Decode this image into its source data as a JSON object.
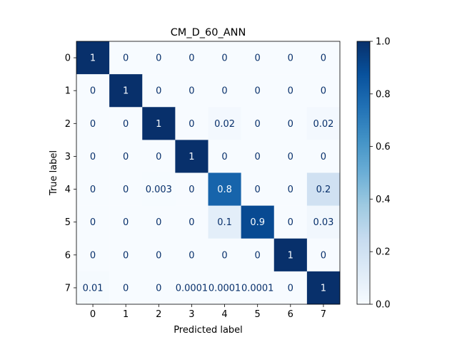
{
  "chart_data": {
    "type": "heatmap",
    "title": "CM_D_60_ANN",
    "xlabel": "Predicted label",
    "ylabel": "True label",
    "x_categories": [
      "0",
      "1",
      "2",
      "3",
      "4",
      "5",
      "6",
      "7"
    ],
    "y_categories": [
      "0",
      "1",
      "2",
      "3",
      "4",
      "5",
      "6",
      "7"
    ],
    "values": [
      [
        1,
        0,
        0,
        0,
        0,
        0,
        0,
        0
      ],
      [
        0,
        1,
        0,
        0,
        0,
        0,
        0,
        0
      ],
      [
        0,
        0,
        1,
        0,
        0.02,
        0,
        0,
        0.02
      ],
      [
        0,
        0,
        0,
        1,
        0,
        0,
        0,
        0
      ],
      [
        0,
        0,
        0.003,
        0,
        0.8,
        0,
        0,
        0.2
      ],
      [
        0,
        0,
        0,
        0,
        0.1,
        0.9,
        0,
        0.03
      ],
      [
        0,
        0,
        0,
        0,
        0,
        0,
        1,
        0
      ],
      [
        0.01,
        0,
        0,
        0.0001,
        0.0001,
        0.0001,
        0,
        1
      ]
    ],
    "cell_labels": [
      [
        "1",
        "0",
        "0",
        "0",
        "0",
        "0",
        "0",
        "0"
      ],
      [
        "0",
        "1",
        "0",
        "0",
        "0",
        "0",
        "0",
        "0"
      ],
      [
        "0",
        "0",
        "1",
        "0",
        "0.02",
        "0",
        "0",
        "0.02"
      ],
      [
        "0",
        "0",
        "0",
        "1",
        "0",
        "0",
        "0",
        "0"
      ],
      [
        "0",
        "0",
        "0.003",
        "0",
        "0.8",
        "0",
        "0",
        "0.2"
      ],
      [
        "0",
        "0",
        "0",
        "0",
        "0.1",
        "0.9",
        "0",
        "0.03"
      ],
      [
        "0",
        "0",
        "0",
        "0",
        "0",
        "0",
        "1",
        "0"
      ],
      [
        "0.01",
        "0",
        "0",
        "0.0001",
        "0.0001",
        "0.0001",
        "0",
        "1"
      ]
    ],
    "colormap": "Blues",
    "colorbar": {
      "range": [
        0,
        1
      ],
      "ticks": [
        "0.0",
        "0.2",
        "0.4",
        "0.6",
        "0.8",
        "1.0"
      ]
    },
    "colors": {
      "low": "#f7fbff",
      "high": "#08306b",
      "text_dark": "#08306b",
      "text_light": "#f7fbff"
    },
    "legend": "none",
    "grid": false
  }
}
